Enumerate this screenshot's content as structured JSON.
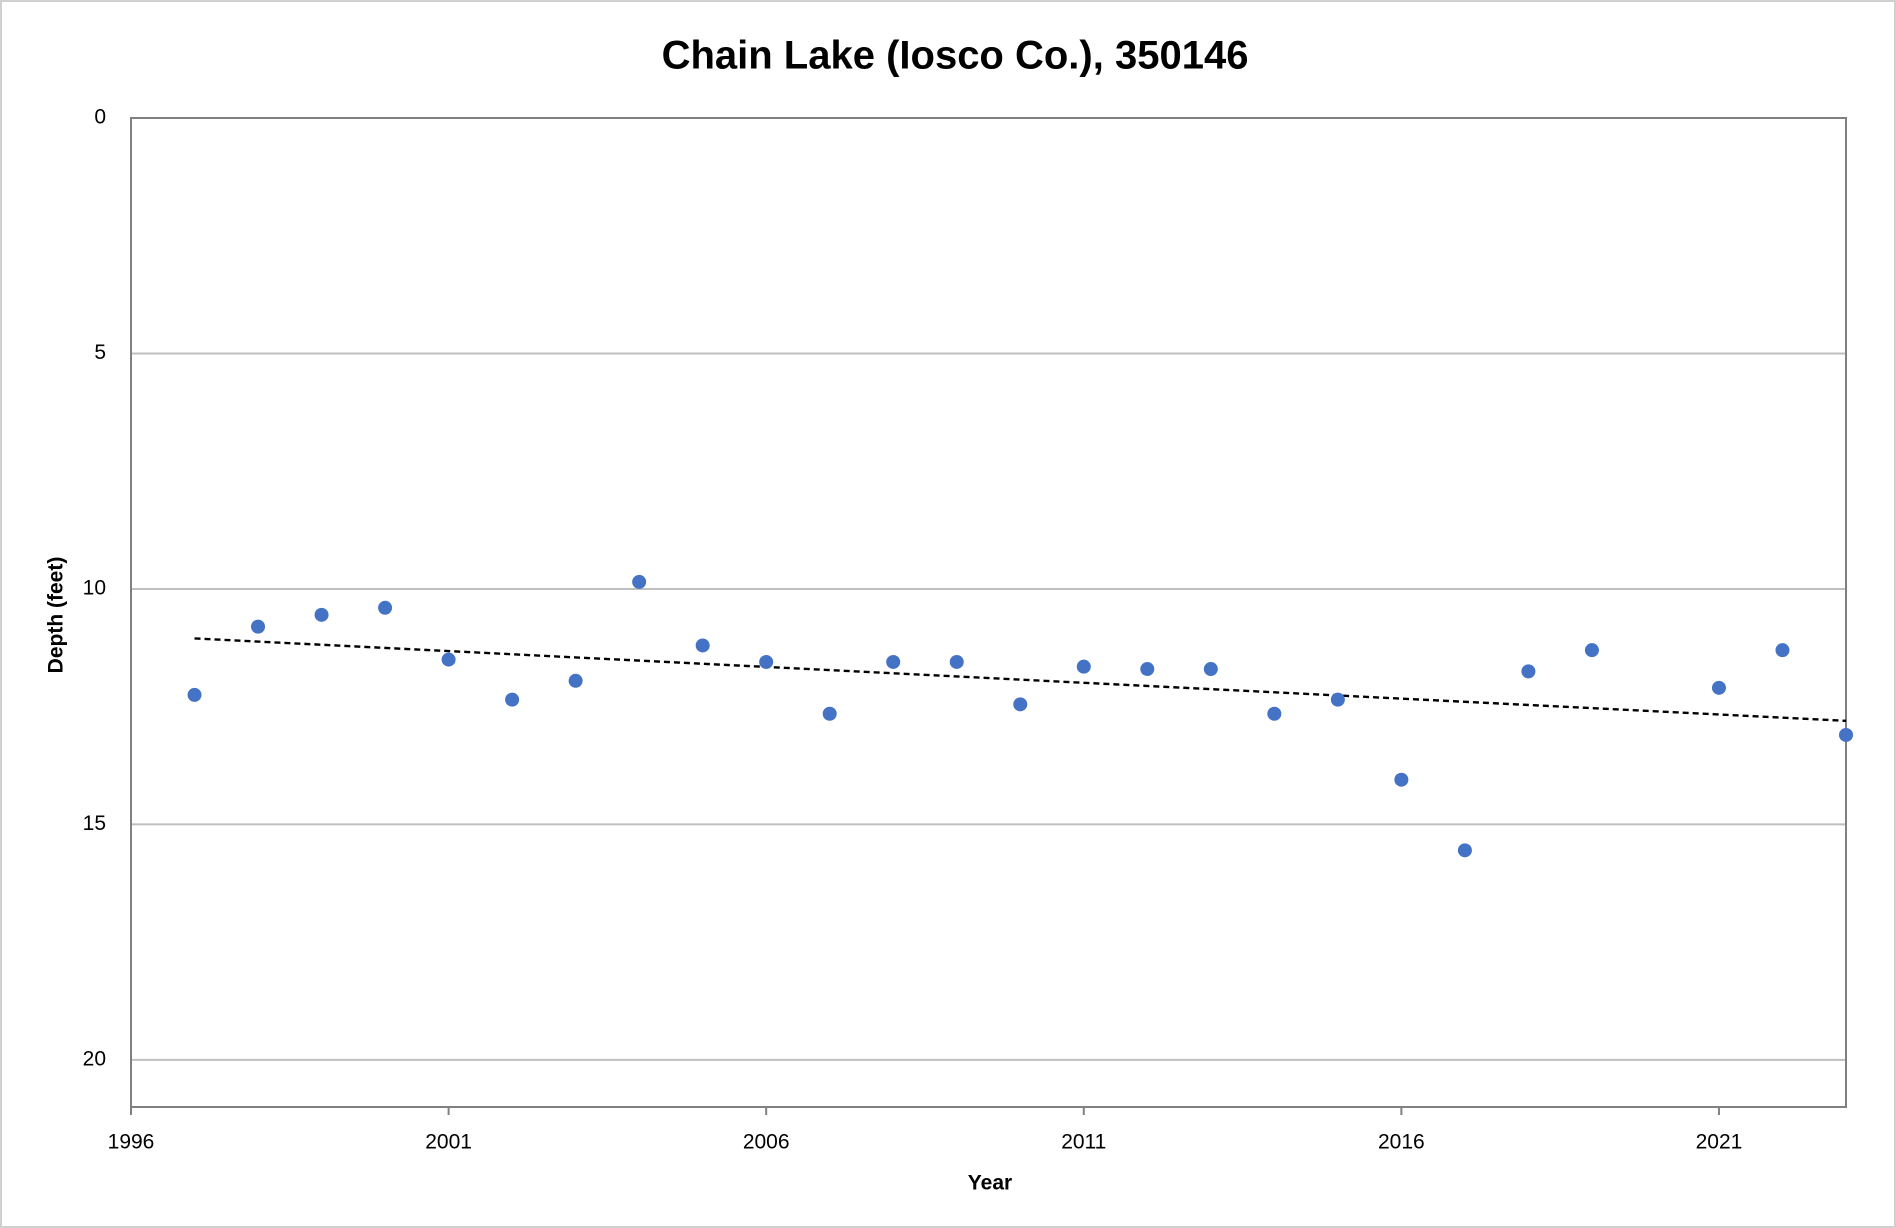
{
  "chart_data": {
    "type": "scatter",
    "title": "Chain Lake (Iosco Co.), 350146",
    "x_label": "Year",
    "y_label": "Depth (feet)",
    "x": [
      1997,
      1998,
      1999,
      2000,
      2001,
      2002,
      2003,
      2004,
      2005,
      2006,
      2007,
      2008,
      2009,
      2010,
      2011,
      2012,
      2013,
      2014,
      2015,
      2016,
      2017,
      2018,
      2019,
      2021,
      2022,
      2023
    ],
    "series": [
      {
        "name": "Depth",
        "color": "#4472c4",
        "values": [
          12.25,
          10.8,
          10.55,
          10.4,
          11.5,
          12.35,
          11.95,
          9.85,
          11.2,
          11.55,
          12.65,
          11.55,
          11.55,
          12.45,
          11.65,
          11.7,
          11.7,
          12.65,
          12.35,
          14.05,
          15.55,
          11.75,
          11.3,
          12.1,
          11.3,
          13.1
        ]
      }
    ],
    "trendline": {
      "x": [
        1997,
        2023
      ],
      "values": [
        11.05,
        12.8
      ],
      "color": "#000000"
    },
    "xlim": [
      1996,
      2023
    ],
    "xticks": [
      1996,
      2001,
      2006,
      2011,
      2016,
      2021
    ],
    "ylim": [
      0,
      21
    ],
    "yticks": [
      0,
      5,
      10,
      15,
      20
    ],
    "y_inverted": true,
    "grid": true
  }
}
